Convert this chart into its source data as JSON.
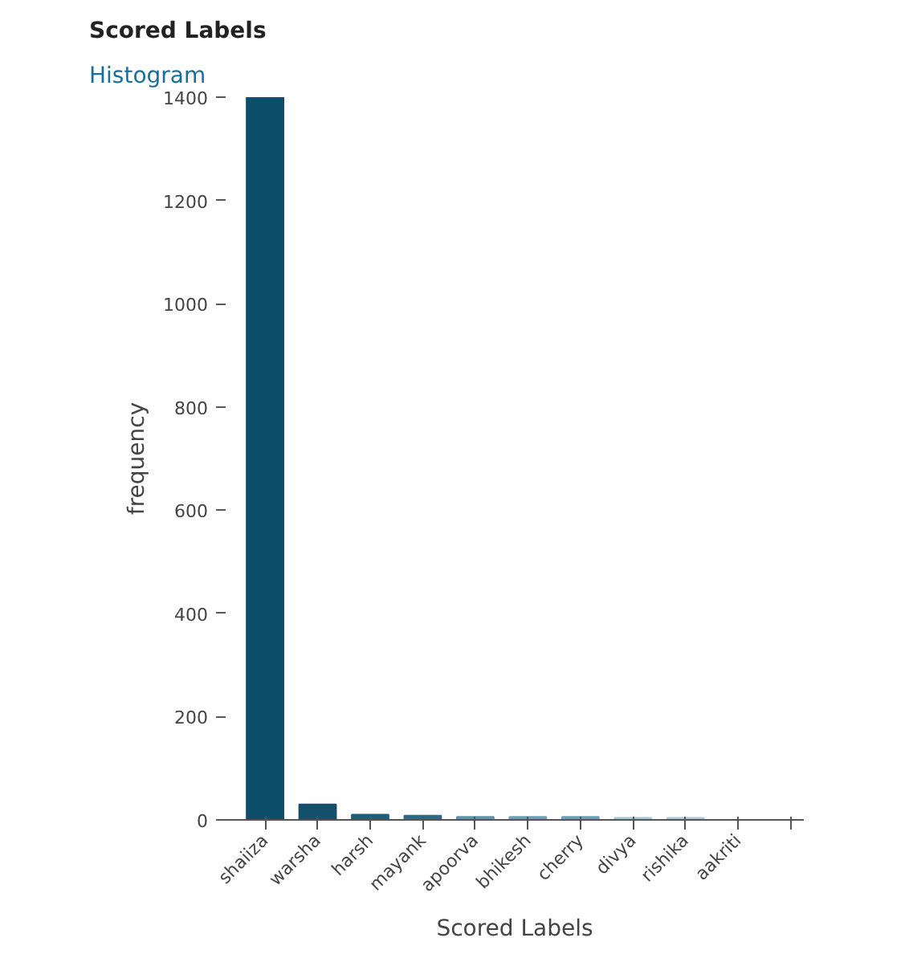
{
  "chart_data": {
    "type": "bar",
    "title": "Scored Labels",
    "subtitle": "Histogram",
    "xlabel": "Scored Labels",
    "ylabel": "frequency",
    "categories": [
      "shaiiza",
      "warsha",
      "harsh",
      "mayank",
      "apoorva",
      "bhikesh",
      "cherry",
      "divya",
      "rishika",
      "aakriti"
    ],
    "values": [
      1400,
      30,
      10,
      8,
      6,
      6,
      6,
      4,
      4,
      0
    ],
    "colors": [
      "#0d4f6b",
      "#13506b",
      "#1d5f7a",
      "#2a6d88",
      "#5a94ad",
      "#6aa0b8",
      "#6aa0b8",
      "#9fc4d4",
      "#a8c8d8",
      "#c4dbe6"
    ],
    "ylim": [
      0,
      1400
    ],
    "yticks": [
      0,
      200,
      400,
      600,
      800,
      1000,
      1200,
      1400
    ],
    "grid": false
  }
}
